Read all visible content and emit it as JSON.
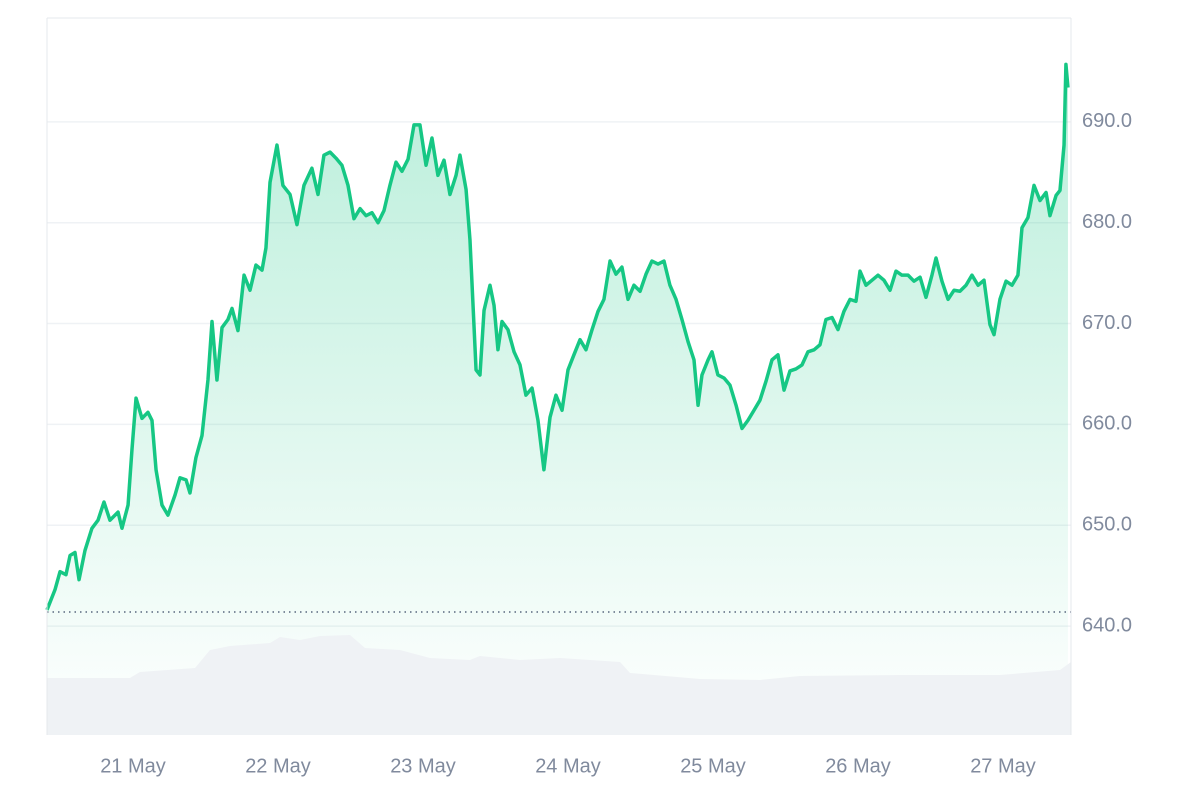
{
  "chart_data": {
    "type": "line",
    "x": [
      20.407,
      20.462,
      20.497,
      20.538,
      20.566,
      20.6,
      20.628,
      20.669,
      20.717,
      20.759,
      20.8,
      20.841,
      20.897,
      20.924,
      20.966,
      20.993,
      21.021,
      21.062,
      21.103,
      21.131,
      21.159,
      21.2,
      21.241,
      21.29,
      21.324,
      21.366,
      21.393,
      21.434,
      21.476,
      21.517,
      21.545,
      21.579,
      21.614,
      21.655,
      21.683,
      21.724,
      21.766,
      21.807,
      21.848,
      21.89,
      21.917,
      21.945,
      21.993,
      22.034,
      22.083,
      22.131,
      22.179,
      22.234,
      22.276,
      22.317,
      22.359,
      22.4,
      22.441,
      22.483,
      22.524,
      22.566,
      22.607,
      22.648,
      22.69,
      22.731,
      22.772,
      22.814,
      22.855,
      22.897,
      22.938,
      22.979,
      23.021,
      23.062,
      23.103,
      23.145,
      23.186,
      23.228,
      23.255,
      23.297,
      23.324,
      23.366,
      23.393,
      23.421,
      23.462,
      23.49,
      23.517,
      23.545,
      23.586,
      23.628,
      23.669,
      23.71,
      23.752,
      23.793,
      23.834,
      23.876,
      23.917,
      23.959,
      24.0,
      24.041,
      24.083,
      24.124,
      24.166,
      24.207,
      24.248,
      24.29,
      24.331,
      24.372,
      24.414,
      24.455,
      24.497,
      24.538,
      24.579,
      24.621,
      24.662,
      24.703,
      24.745,
      24.786,
      24.828,
      24.869,
      24.897,
      24.924,
      24.966,
      24.993,
      25.034,
      25.076,
      25.117,
      25.159,
      25.2,
      25.241,
      25.283,
      25.324,
      25.366,
      25.407,
      25.448,
      25.49,
      25.531,
      25.572,
      25.614,
      25.655,
      25.697,
      25.738,
      25.779,
      25.821,
      25.862,
      25.903,
      25.945,
      25.986,
      26.014,
      26.055,
      26.097,
      26.138,
      26.179,
      26.221,
      26.262,
      26.303,
      26.345,
      26.386,
      26.428,
      26.469,
      26.51,
      26.538,
      26.579,
      26.621,
      26.662,
      26.703,
      26.745,
      26.786,
      26.828,
      26.869,
      26.91,
      26.938,
      26.979,
      27.021,
      27.062,
      27.103,
      27.131,
      27.172,
      27.214,
      27.255,
      27.297,
      27.324,
      27.366,
      27.393,
      27.421,
      27.434,
      27.448
    ],
    "series": [
      {
        "color": "#16c784",
        "values": [
          641.6,
          643.6,
          645.4,
          645.1,
          647.0,
          647.3,
          644.6,
          647.5,
          649.7,
          650.5,
          652.3,
          650.5,
          651.3,
          649.7,
          652.0,
          657.5,
          662.6,
          660.6,
          661.2,
          660.4,
          655.5,
          652.0,
          651.0,
          653.0,
          654.7,
          654.5,
          653.2,
          656.7,
          658.9,
          664.4,
          670.2,
          664.4,
          669.6,
          670.4,
          671.5,
          669.3,
          674.8,
          673.3,
          675.8,
          675.3,
          677.5,
          684.0,
          687.7,
          683.7,
          682.8,
          679.8,
          683.7,
          685.4,
          682.8,
          686.7,
          687.0,
          686.4,
          685.7,
          683.7,
          680.4,
          681.4,
          680.7,
          681.0,
          680.0,
          681.2,
          683.7,
          686.0,
          685.1,
          686.3,
          689.7,
          689.7,
          685.7,
          688.4,
          684.7,
          686.2,
          682.8,
          684.7,
          686.7,
          683.3,
          678.3,
          665.4,
          664.9,
          671.3,
          673.8,
          671.8,
          667.4,
          670.2,
          669.4,
          667.2,
          665.9,
          662.9,
          663.6,
          660.4,
          655.5,
          660.7,
          662.9,
          661.4,
          665.4,
          666.9,
          668.4,
          667.4,
          669.4,
          671.2,
          672.4,
          676.2,
          674.9,
          675.6,
          672.4,
          673.8,
          673.2,
          674.9,
          676.2,
          675.9,
          676.2,
          673.8,
          672.4,
          670.4,
          668.2,
          666.4,
          661.9,
          664.9,
          666.4,
          667.2,
          664.9,
          664.6,
          663.9,
          661.9,
          659.6,
          660.4,
          661.4,
          662.4,
          664.3,
          666.4,
          666.9,
          663.4,
          665.3,
          665.5,
          665.9,
          667.2,
          667.4,
          667.9,
          670.4,
          670.6,
          669.4,
          671.2,
          672.4,
          672.2,
          675.2,
          673.8,
          674.3,
          674.8,
          674.3,
          673.3,
          675.2,
          674.8,
          674.8,
          674.2,
          674.6,
          672.6,
          674.8,
          676.5,
          674.2,
          672.4,
          673.3,
          673.2,
          673.8,
          674.8,
          673.8,
          674.3,
          669.9,
          668.9,
          672.4,
          674.2,
          673.8,
          674.8,
          679.5,
          680.5,
          683.7,
          682.2,
          683.0,
          680.7,
          682.7,
          683.2,
          687.7,
          695.7,
          693.4
        ]
      }
    ],
    "reference_line": 641.4,
    "volume": {
      "color": "#eff2f5",
      "x": [
        20.407,
        20.979,
        21.048,
        21.428,
        21.531,
        21.669,
        21.945,
        22.014,
        22.152,
        22.29,
        22.497,
        22.6,
        22.841,
        23.048,
        23.324,
        23.393,
        23.669,
        23.945,
        24.359,
        24.428,
        24.91,
        25.324,
        25.6,
        26.29,
        26.979,
        27.393,
        27.469
      ],
      "values": [
        57,
        57,
        63,
        67,
        85,
        89,
        92,
        98,
        95,
        99,
        100,
        87,
        85,
        77,
        75,
        79,
        75,
        77,
        73,
        62,
        56,
        55,
        59,
        60,
        60,
        65,
        73
      ],
      "ylim": [
        0,
        100
      ]
    },
    "xlim": [
      20.407,
      27.469
    ],
    "xticks": [
      {
        "value": 21,
        "label": "21 May"
      },
      {
        "value": 22,
        "label": "22 May"
      },
      {
        "value": 23,
        "label": "23 May"
      },
      {
        "value": 24,
        "label": "24 May"
      },
      {
        "value": 25,
        "label": "25 May"
      },
      {
        "value": 26,
        "label": "26 May"
      },
      {
        "value": 27,
        "label": "27 May"
      }
    ],
    "ylim": [
      629.2,
      700.3
    ],
    "yticks": [
      {
        "value": 640,
        "label": "640.0"
      },
      {
        "value": 650,
        "label": "650.0"
      },
      {
        "value": 660,
        "label": "660.0"
      },
      {
        "value": 670,
        "label": "670.0"
      },
      {
        "value": 680,
        "label": "680.0"
      },
      {
        "value": 690,
        "label": "690.0"
      }
    ],
    "grid": true
  }
}
